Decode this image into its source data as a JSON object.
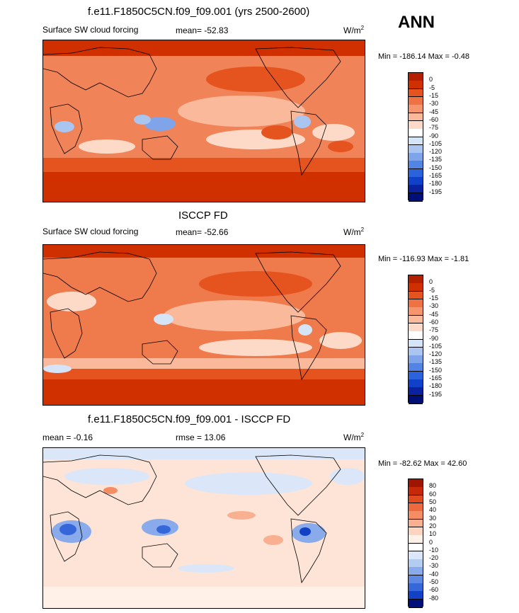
{
  "season": "ANN",
  "units_base": "W/m",
  "units_exp": "2",
  "panels": [
    {
      "title": "f.e11.F1850C5CN.f09_f09.001 (yrs 2500-2600)",
      "left_label": "Surface SW cloud forcing",
      "stat_label": "mean=  -52.83",
      "minmax": "Min = -186.14 Max =  -0.48",
      "levels": [
        "0",
        "-5",
        "-15",
        "-30",
        "-45",
        "-60",
        "-75",
        "-90",
        "-105",
        "-120",
        "-135",
        "-150",
        "-165",
        "-180",
        "-195"
      ],
      "colors": [
        "#b22000",
        "#d03000",
        "#e5531f",
        "#ef7245",
        "#f6946d",
        "#fbb99b",
        "#fddac8",
        "#ffffff",
        "#d5e4f7",
        "#a9c5f0",
        "#7fa4ea",
        "#5284e3",
        "#2a63db",
        "#1041c8",
        "#0a22a0",
        "#000e78"
      ],
      "bg": "#f08357"
    },
    {
      "title": "ISCCP FD",
      "left_label": "Surface SW cloud forcing",
      "stat_label": "mean=  -52.66",
      "minmax": "Min = -116.93 Max =  -1.81",
      "levels": [
        "0",
        "-5",
        "-15",
        "-30",
        "-45",
        "-60",
        "-75",
        "-90",
        "-105",
        "-120",
        "-135",
        "-150",
        "-165",
        "-180",
        "-195"
      ],
      "colors": [
        "#b22000",
        "#d03000",
        "#e5531f",
        "#ef7245",
        "#f6946d",
        "#fbb99b",
        "#fddac8",
        "#ffffff",
        "#d5e4f7",
        "#a9c5f0",
        "#7fa4ea",
        "#5284e3",
        "#2a63db",
        "#1041c8",
        "#0a22a0",
        "#000e78"
      ],
      "bg": "#ef7a4c"
    },
    {
      "title": "f.e11.F1850C5CN.f09_f09.001 - ISCCP FD",
      "left_label": "mean =  -0.16",
      "stat_label": "rmse =  13.06",
      "minmax": "Min = -82.62 Max =  42.60",
      "levels": [
        "80",
        "60",
        "50",
        "40",
        "30",
        "20",
        "10",
        "0",
        "-10",
        "-20",
        "-30",
        "-40",
        "-50",
        "-60",
        "-80"
      ],
      "colors": [
        "#a01500",
        "#c8280a",
        "#df4a1e",
        "#ec6a3e",
        "#f48c64",
        "#f9b091",
        "#fdd4c0",
        "#fff0e8",
        "#ffffff",
        "#dbe7f8",
        "#b3ccf2",
        "#89abeb",
        "#5e89e3",
        "#3566da",
        "#1241c5",
        "#000f7a"
      ],
      "bg": "#fde4d6"
    }
  ]
}
